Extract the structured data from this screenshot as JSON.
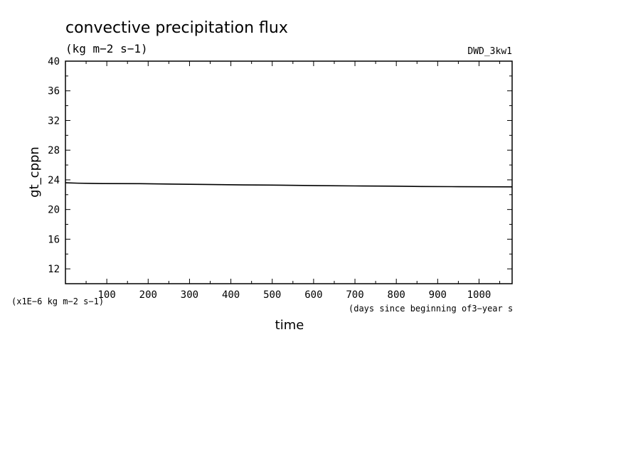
{
  "chart_data": {
    "type": "line",
    "title": "convective precipitation flux",
    "subtitle": "(kg m−2 s−1)",
    "run_label": "DWD_3kw1",
    "xlabel": "time",
    "xlabel_units": "(days since beginning of3−year s",
    "ylabel": "gt_cppn",
    "y_scale_label": "(x1E−6 kg m−2 s−1)",
    "xlim": [
      0,
      1080
    ],
    "ylim": [
      10,
      40
    ],
    "x_ticks": [
      100,
      200,
      300,
      400,
      500,
      600,
      700,
      800,
      900,
      1000
    ],
    "y_ticks": [
      12,
      16,
      20,
      24,
      28,
      32,
      36,
      40
    ],
    "grid": false,
    "series": [
      {
        "x": [
          0,
          30,
          90,
          180,
          260,
          340,
          430,
          520,
          610,
          700,
          790,
          860,
          950,
          1080
        ],
        "y": [
          23.6,
          23.55,
          23.5,
          23.48,
          23.42,
          23.38,
          23.32,
          23.28,
          23.22,
          23.18,
          23.15,
          23.1,
          23.08,
          23.05
        ]
      }
    ]
  }
}
